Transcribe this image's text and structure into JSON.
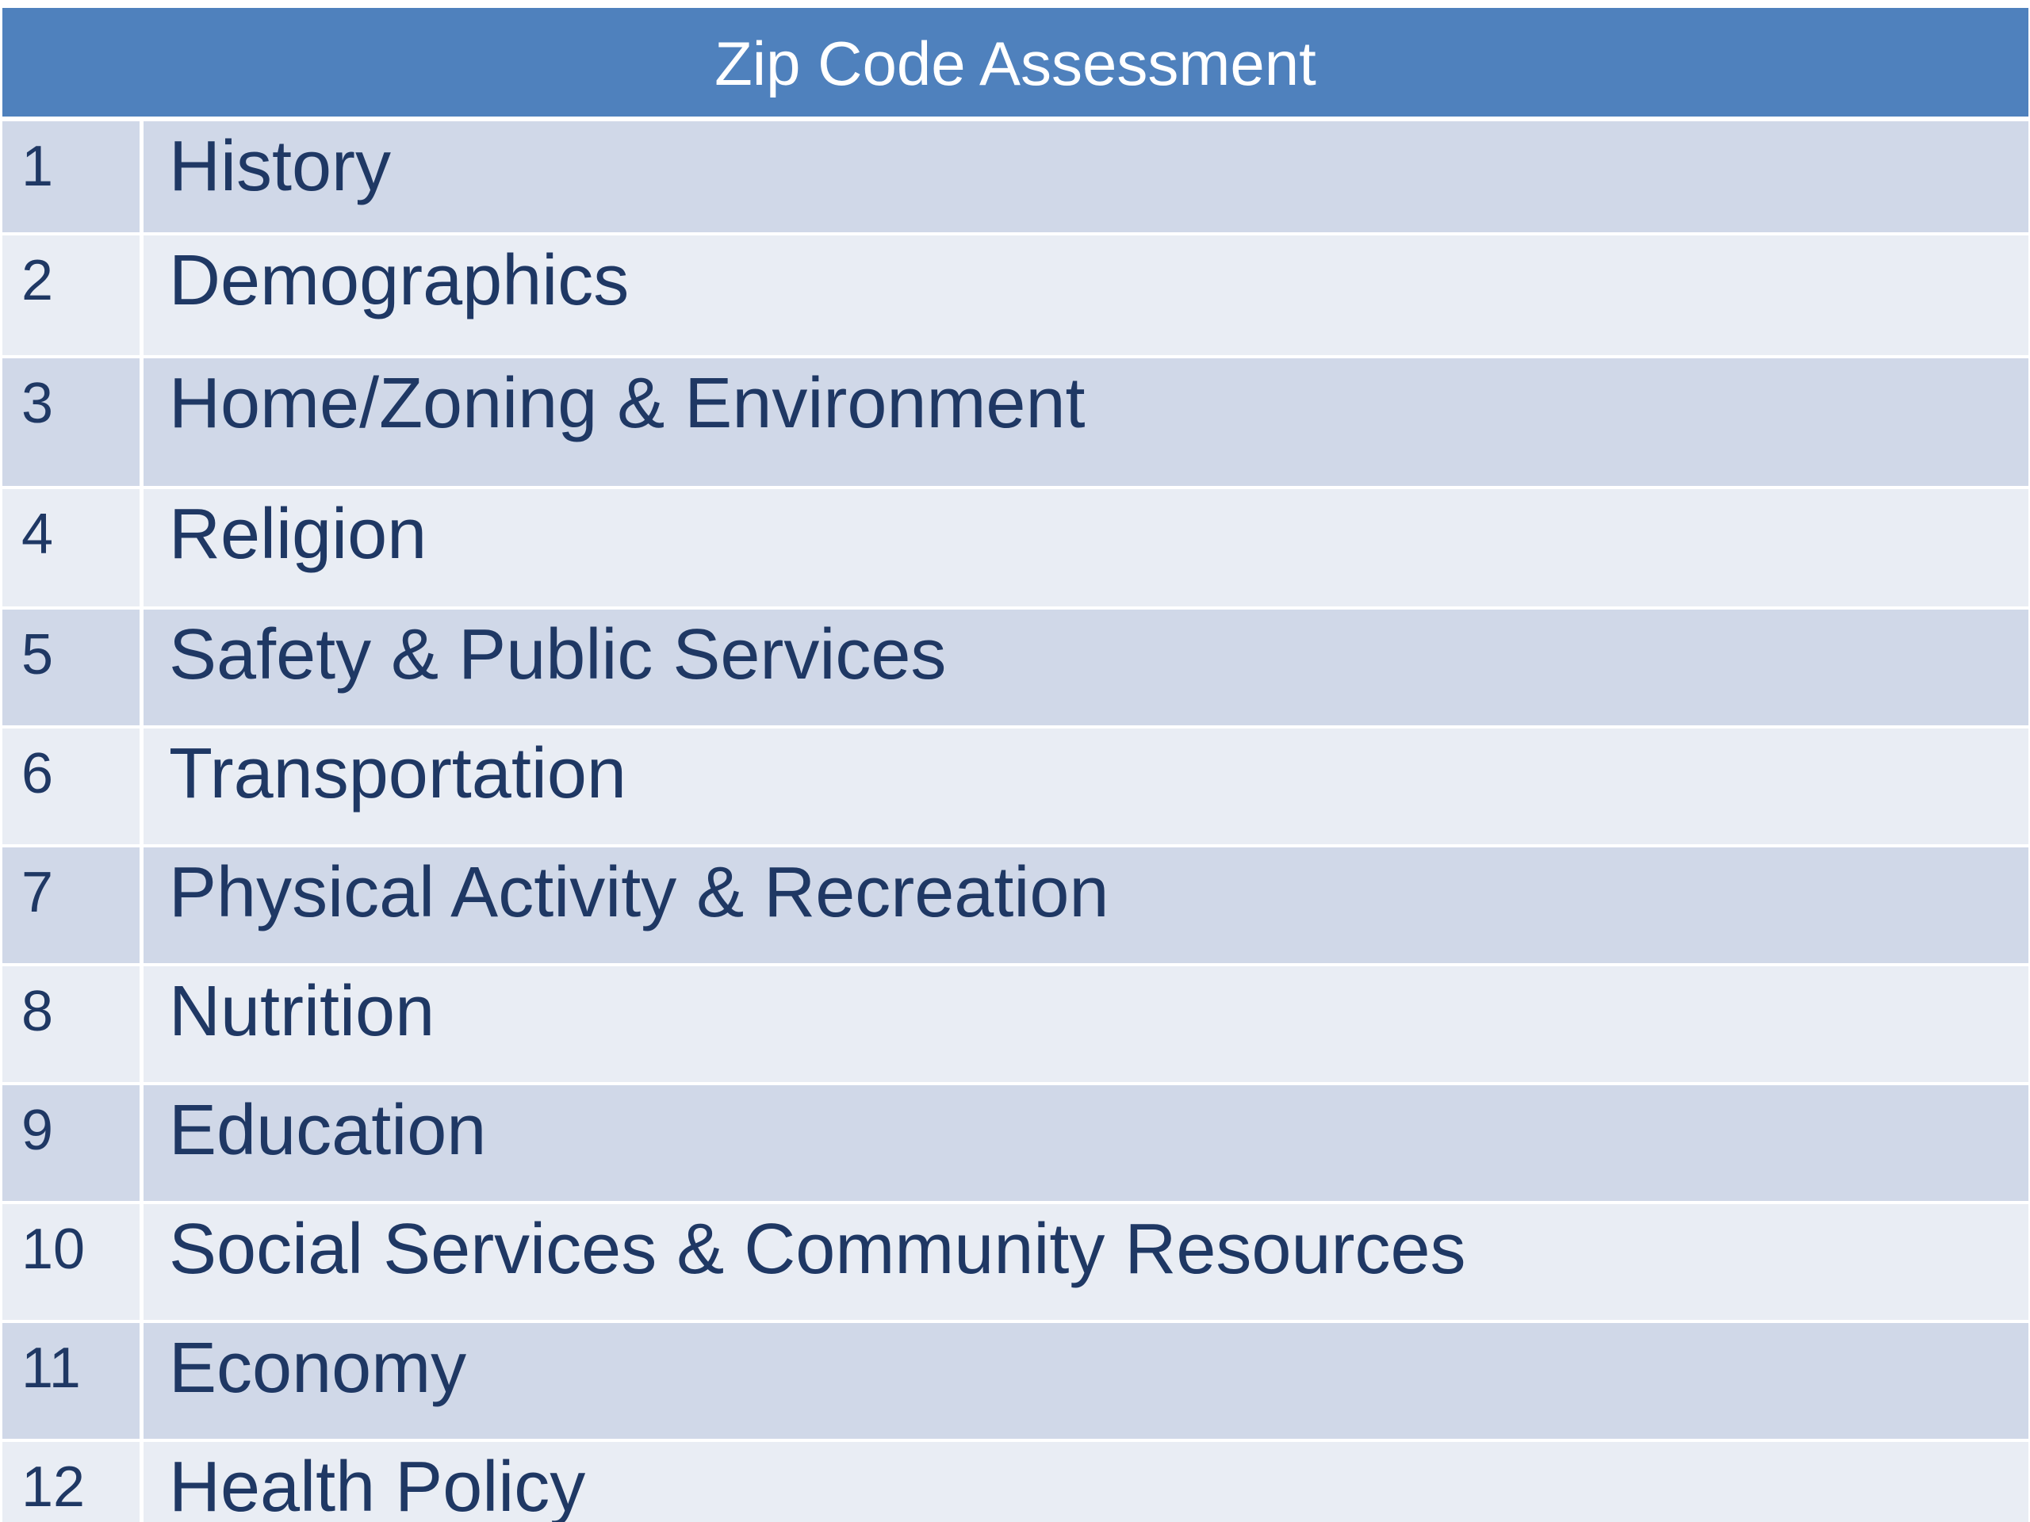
{
  "table": {
    "title": "Zip Code Assessment",
    "rows": [
      {
        "num": "1",
        "label": "History"
      },
      {
        "num": "2",
        "label": "Demographics"
      },
      {
        "num": "3",
        "label": "Home/Zoning & Environment"
      },
      {
        "num": "4",
        "label": "Religion"
      },
      {
        "num": "5",
        "label": "Safety & Public Services"
      },
      {
        "num": "6",
        "label": "Transportation"
      },
      {
        "num": "7",
        "label": "Physical Activity & Recreation"
      },
      {
        "num": "8",
        "label": "Nutrition"
      },
      {
        "num": "9",
        "label": "Education"
      },
      {
        "num": "10",
        "label": "Social Services & Community Resources"
      },
      {
        "num": "11",
        "label": "Economy"
      },
      {
        "num": "12",
        "label": "Health Policy"
      }
    ],
    "colors": {
      "header": "#4f81bd",
      "row_dark": "#d0d8e8",
      "row_light": "#e9edf4",
      "text": "#1f3864"
    }
  }
}
